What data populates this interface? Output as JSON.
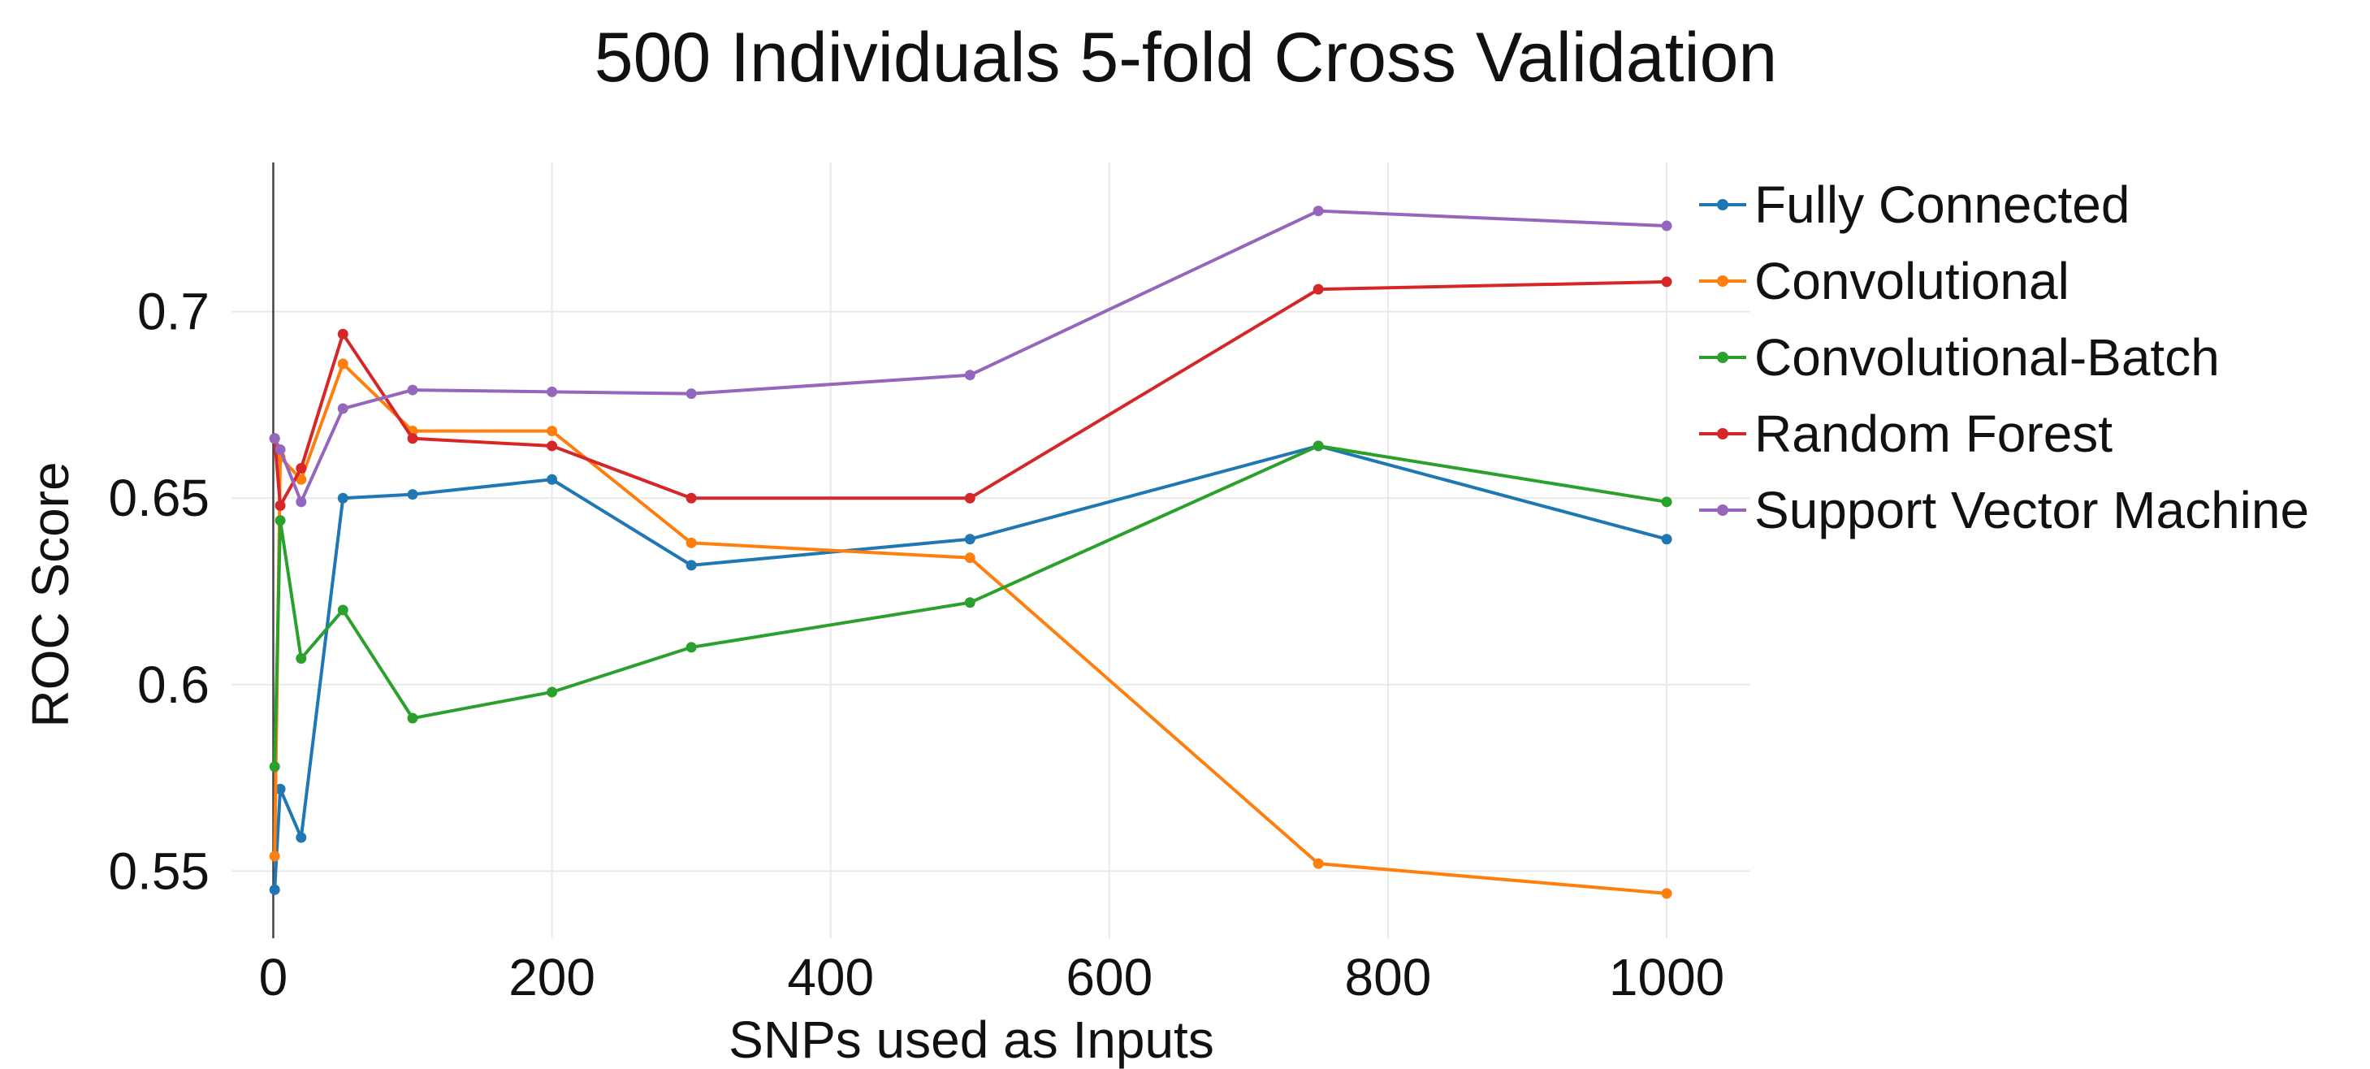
{
  "chart_data": {
    "type": "line",
    "title": "500 Individuals 5-fold Cross Validation",
    "xlabel": "SNPs used as Inputs",
    "ylabel": "ROC Score",
    "xlim": [
      -30,
      1060
    ],
    "ylim": [
      0.532,
      0.74
    ],
    "xticks": [
      0,
      200,
      400,
      600,
      800,
      1000
    ],
    "yticks": [
      0.55,
      0.6,
      0.65,
      0.7
    ],
    "ytick_labels": [
      "0.55",
      "0.6",
      "0.65",
      "0.7"
    ],
    "grid": true,
    "legend_position": "right",
    "x": [
      1,
      5,
      20,
      50,
      100,
      200,
      300,
      500,
      750,
      1000
    ],
    "series": [
      {
        "name": "Fully Connected",
        "color": "#1f77b4",
        "values": [
          0.545,
          0.572,
          0.559,
          0.65,
          0.651,
          0.655,
          0.632,
          0.639,
          0.664,
          0.639
        ]
      },
      {
        "name": "Convolutional",
        "color": "#ff7f0e",
        "values": [
          0.554,
          0.661,
          0.655,
          0.686,
          0.668,
          0.668,
          0.638,
          0.634,
          0.552,
          0.544
        ]
      },
      {
        "name": "Convolutional-Batch",
        "color": "#2ca02c",
        "values": [
          0.578,
          0.644,
          0.607,
          0.62,
          0.591,
          0.598,
          0.61,
          0.622,
          0.664,
          0.649
        ]
      },
      {
        "name": "Random Forest",
        "color": "#d62728",
        "values": [
          0.666,
          0.648,
          0.658,
          0.694,
          0.666,
          0.664,
          0.65,
          0.65,
          0.706,
          0.708
        ]
      },
      {
        "name": "Support Vector Machine",
        "color": "#9467bd",
        "values": [
          0.666,
          0.663,
          0.649,
          0.674,
          0.679,
          0.6785,
          0.678,
          0.683,
          0.727,
          0.723
        ]
      }
    ]
  }
}
